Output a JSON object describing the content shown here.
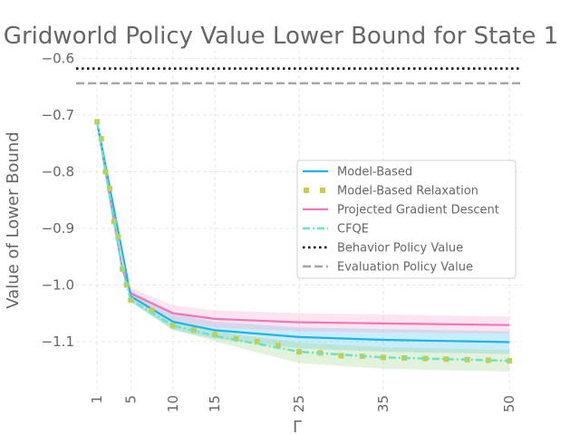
{
  "chart_data": {
    "type": "line",
    "title": "Gridworld Policy Value Lower Bound for State 1",
    "xlabel": "Γ",
    "ylabel": "Value of Lower Bound",
    "xlim": [
      -1.5,
      51.5
    ],
    "ylim": [
      -1.185,
      -0.585
    ],
    "xticks": [
      1,
      5,
      10,
      15,
      25,
      35,
      50
    ],
    "yticks": [
      -0.6,
      -0.7,
      -0.8,
      -0.9,
      -1.0,
      -1.1
    ],
    "ytick_labels": [
      "−0.6",
      "−0.7",
      "−0.8",
      "−0.9",
      "−1.0",
      "−1.1"
    ],
    "grid": true,
    "legend_position": "center-right",
    "series": [
      {
        "name": "Model-Based",
        "color": "#1ab6ea",
        "style": "solid",
        "band_color": "#4cc3ee",
        "x": [
          1,
          5,
          10,
          15,
          25,
          35,
          50
        ],
        "y": [
          -0.712,
          -1.02,
          -1.065,
          -1.08,
          -1.092,
          -1.097,
          -1.101
        ],
        "band_low": [
          -0.712,
          -1.03,
          -1.08,
          -1.095,
          -1.112,
          -1.118,
          -1.122
        ],
        "band_high": [
          -0.712,
          -1.01,
          -1.05,
          -1.065,
          -1.075,
          -1.078,
          -1.082
        ]
      },
      {
        "name": "Model-Based Relaxation",
        "color": "#cccc44",
        "style": "dotted-squares",
        "x": [
          1,
          1.5,
          2,
          2.5,
          3,
          3.5,
          4,
          4.5,
          5,
          7.5,
          10,
          12.5,
          15,
          17.5,
          20,
          22.5,
          25,
          27.5,
          30,
          32.5,
          35,
          37.5,
          40,
          42.5,
          45,
          47.5,
          50
        ],
        "y": [
          -0.712,
          -0.742,
          -0.8,
          -0.83,
          -0.888,
          -0.915,
          -0.972,
          -1.0,
          -1.027,
          -1.045,
          -1.072,
          -1.08,
          -1.088,
          -1.095,
          -1.1,
          -1.107,
          -1.118,
          -1.12,
          -1.125,
          -1.126,
          -1.128,
          -1.129,
          -1.13,
          -1.131,
          -1.132,
          -1.133,
          -1.134
        ]
      },
      {
        "name": "Projected Gradient Descent",
        "color": "#ee77b8",
        "style": "solid",
        "band_color": "#f4a6cf",
        "x": [
          1,
          2,
          3,
          4,
          5,
          10,
          15,
          25,
          35,
          50
        ],
        "y": [
          -0.712,
          -0.8,
          -0.888,
          -0.972,
          -1.015,
          -1.05,
          -1.06,
          -1.066,
          -1.068,
          -1.071
        ],
        "band_low": [
          -0.712,
          -0.8,
          -0.888,
          -0.972,
          -1.025,
          -1.064,
          -1.075,
          -1.082,
          -1.084,
          -1.086
        ],
        "band_high": [
          -0.712,
          -0.8,
          -0.888,
          -0.972,
          -1.005,
          -1.036,
          -1.045,
          -1.05,
          -1.052,
          -1.056
        ]
      },
      {
        "name": "CFQE",
        "color": "#6ee3c0",
        "style": "dashdot",
        "band_color": "#9bd38f",
        "x": [
          1,
          2,
          3,
          4,
          5,
          10,
          15,
          25,
          35,
          50
        ],
        "y": [
          -0.712,
          -0.8,
          -0.888,
          -0.972,
          -1.027,
          -1.072,
          -1.09,
          -1.118,
          -1.128,
          -1.134
        ],
        "band_low": [
          -0.712,
          -0.8,
          -0.888,
          -0.972,
          -1.03,
          -1.078,
          -1.1,
          -1.138,
          -1.148,
          -1.153
        ],
        "band_high": [
          -0.712,
          -0.8,
          -0.888,
          -0.972,
          -1.024,
          -1.066,
          -1.082,
          -1.102,
          -1.11,
          -1.115
        ]
      },
      {
        "name": "Behavior Policy Value",
        "color": "#000000",
        "style": "dotted",
        "hline": -0.618
      },
      {
        "name": "Evaluation Policy Value",
        "color": "#a6a6a6",
        "style": "dashed",
        "hline": -0.644
      }
    ]
  }
}
